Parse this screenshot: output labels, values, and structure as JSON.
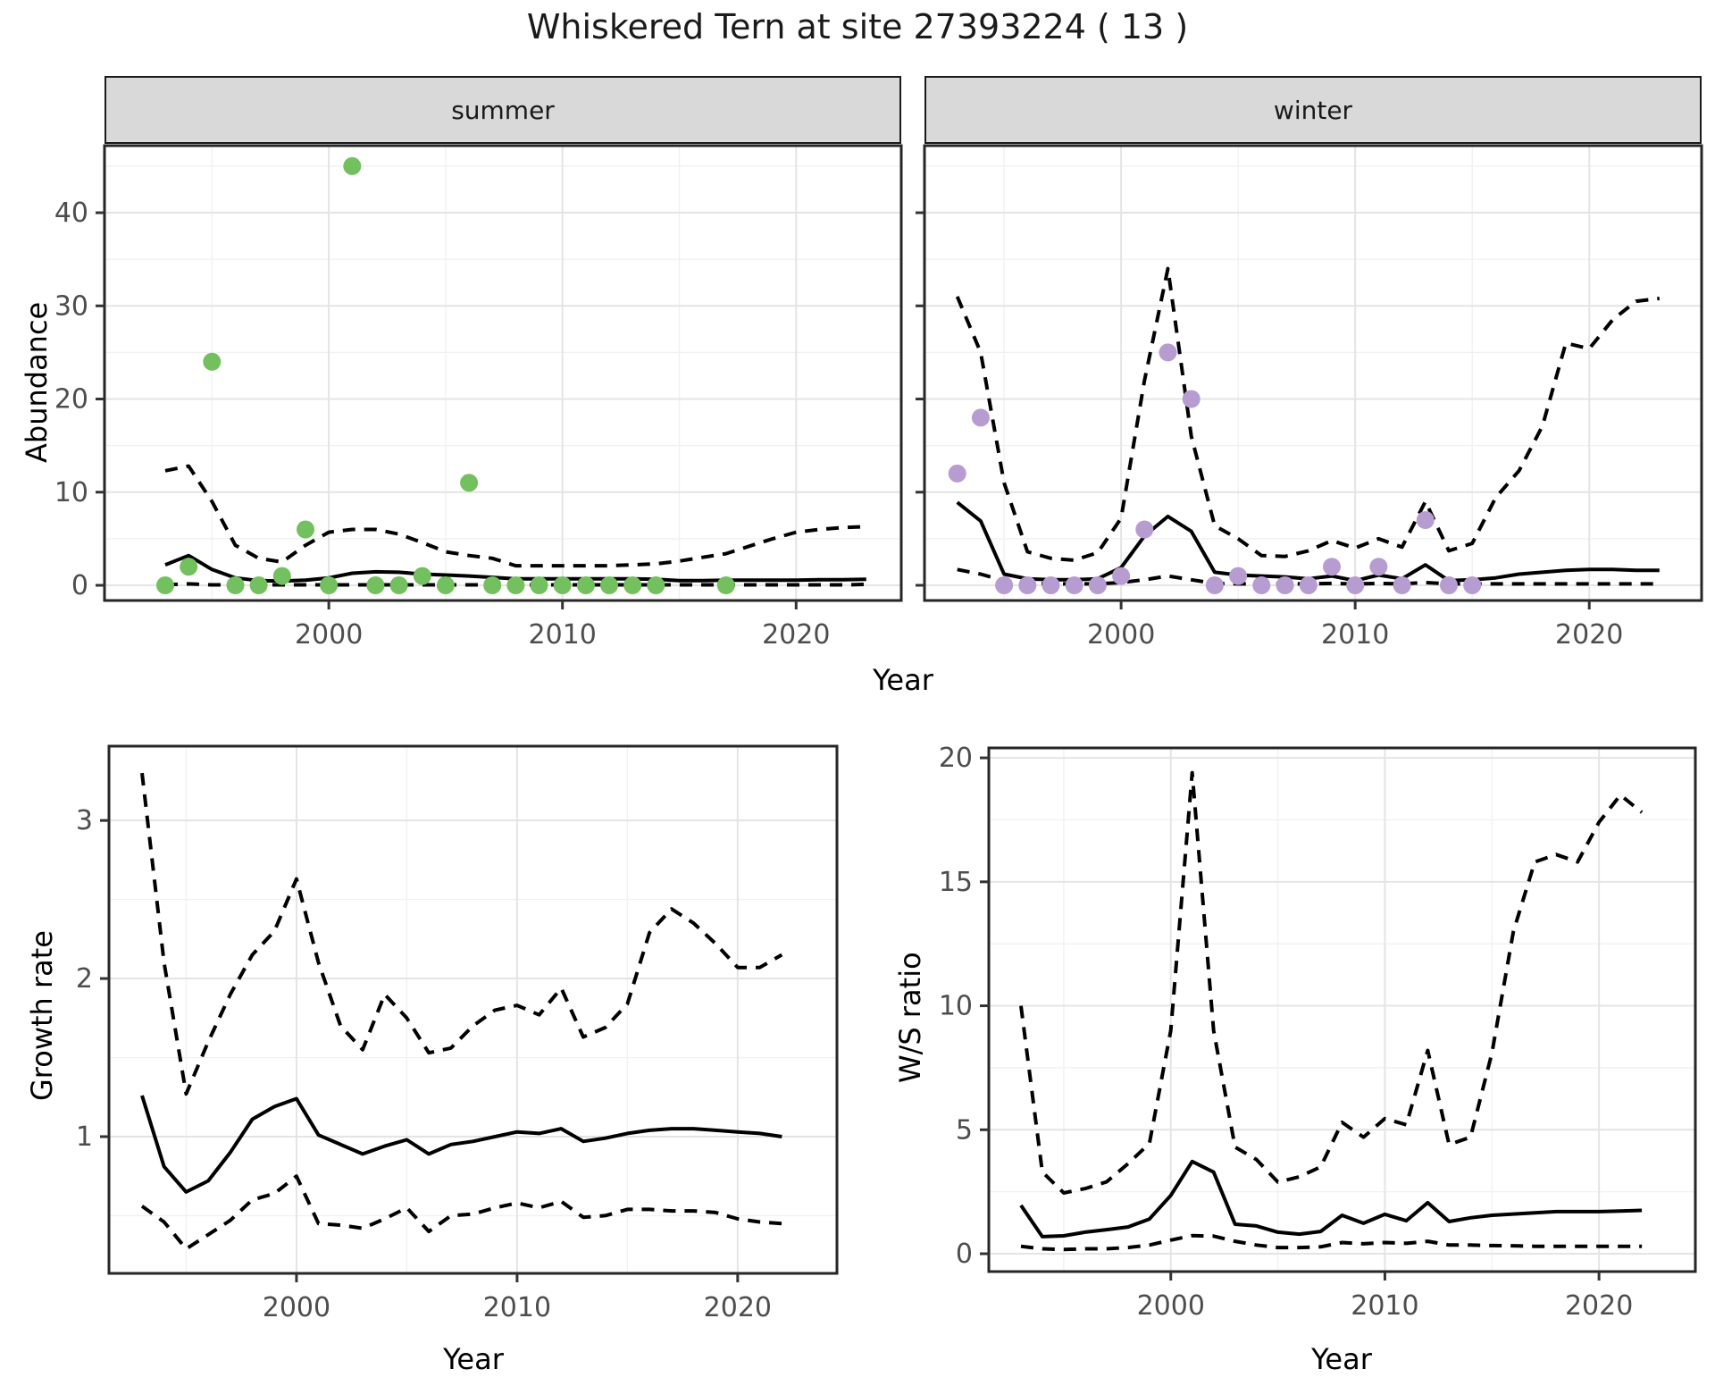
{
  "title": "Whiskered Tern at site 27393224 ( 13 )",
  "xlabel": "Year",
  "colors": {
    "summer_points": "#73c05f",
    "winter_points": "#b69cd1",
    "line": "#000000",
    "strip_bg": "#d9d9d9",
    "panel_border": "#262626",
    "grid_major": "#e4e4e4",
    "grid_minor": "#f1f1f1",
    "tick_label": "#4d4d4d"
  },
  "chart_data": {
    "type": "line",
    "note": "observed abundance dots with modelled median (solid) and 95% CI (dashed)",
    "panels": [
      {
        "id": "abundance-summer",
        "facet": "summer",
        "ylabel": "Abundance",
        "x_ticks": [
          2000,
          2010,
          2020
        ],
        "x_minor": [
          1995,
          2005,
          2015
        ],
        "y_ticks": [
          0,
          10,
          20,
          30,
          40
        ],
        "y_minor": [
          5,
          15,
          25,
          35,
          45
        ],
        "show_y_labels": true,
        "points": {
          "years": [
            1993,
            1994,
            1995,
            1996,
            1997,
            1998,
            1999,
            2000,
            2001,
            2002,
            2003,
            2004,
            2005,
            2006,
            2007,
            2008,
            2009,
            2010,
            2011,
            2012,
            2013,
            2014,
            2017
          ],
          "values": [
            0,
            2,
            24,
            0,
            0,
            1,
            6,
            0,
            45,
            0,
            0,
            1,
            0,
            11,
            0,
            0,
            0,
            0,
            0,
            0,
            0,
            0,
            0
          ],
          "color_key": "summer_points"
        },
        "median": {
          "years_start": 1993,
          "values": [
            2.2,
            3.2,
            1.7,
            0.8,
            0.5,
            0.45,
            0.55,
            0.8,
            1.3,
            1.45,
            1.4,
            1.2,
            1.1,
            1.0,
            0.85,
            0.7,
            0.7,
            0.7,
            0.7,
            0.7,
            0.7,
            0.65,
            0.5,
            0.5,
            0.55,
            0.55,
            0.55,
            0.55,
            0.6,
            0.6,
            0.65
          ]
        },
        "ci_upper": {
          "years_start": 1993,
          "values": [
            12.3,
            12.8,
            9.0,
            4.3,
            2.9,
            2.5,
            4.3,
            5.7,
            6.0,
            6.0,
            5.5,
            4.6,
            3.6,
            3.2,
            2.9,
            2.1,
            2.1,
            2.1,
            2.1,
            2.1,
            2.2,
            2.3,
            2.6,
            3.0,
            3.4,
            4.2,
            5.0,
            5.7,
            6.0,
            6.2,
            6.3
          ]
        },
        "ci_lower": {
          "years_start": 1993,
          "values": [
            0.05,
            0.15,
            0.05,
            0.05,
            0.05,
            0.05,
            0.05,
            0.05,
            0.05,
            0.05,
            0.05,
            0.05,
            0.05,
            0.05,
            0.05,
            0.05,
            0.05,
            0.05,
            0.05,
            0.05,
            0.05,
            0.05,
            0.05,
            0.05,
            0.05,
            0.05,
            0.05,
            0.05,
            0.05,
            0.05,
            0.1
          ]
        }
      },
      {
        "id": "abundance-winter",
        "facet": "winter",
        "ylabel": "Abundance",
        "x_ticks": [
          2000,
          2010,
          2020
        ],
        "x_minor": [
          1995,
          2005,
          2015
        ],
        "y_ticks": [
          0,
          10,
          20,
          30,
          40
        ],
        "y_minor": [
          5,
          15,
          25,
          35,
          45
        ],
        "show_y_labels": false,
        "points": {
          "years": [
            1993,
            1994,
            1995,
            1996,
            1997,
            1998,
            1999,
            2000,
            2001,
            2002,
            2003,
            2004,
            2005,
            2006,
            2007,
            2008,
            2009,
            2010,
            2011,
            2012,
            2013,
            2014,
            2015
          ],
          "values": [
            12,
            18,
            0,
            0,
            0,
            0,
            0,
            1,
            6,
            25,
            20,
            0,
            1,
            0,
            0,
            0,
            2,
            0,
            2,
            0,
            7,
            0,
            0
          ],
          "color_key": "winter_points"
        },
        "median": {
          "years_start": 1993,
          "values": [
            8.9,
            6.9,
            1.2,
            0.7,
            0.6,
            0.6,
            0.7,
            1.9,
            5.3,
            7.4,
            5.8,
            1.4,
            1.1,
            1.0,
            0.9,
            0.7,
            1.0,
            0.5,
            1.1,
            0.7,
            2.2,
            0.5,
            0.6,
            0.8,
            1.2,
            1.4,
            1.6,
            1.7,
            1.7,
            1.6,
            1.6
          ]
        },
        "ci_upper": {
          "years_start": 1993,
          "values": [
            31,
            25,
            11,
            3.6,
            2.9,
            2.7,
            3.5,
            7.2,
            22,
            34,
            16,
            6.4,
            5.0,
            3.2,
            3.1,
            3.7,
            4.8,
            4.0,
            5.0,
            4.1,
            9.0,
            3.7,
            4.5,
            9.4,
            12.3,
            17.1,
            26,
            25.4,
            28.5,
            30.5,
            30.8
          ]
        },
        "ci_lower": {
          "years_start": 1993,
          "values": [
            1.7,
            1.2,
            0.5,
            0.2,
            0.15,
            0.15,
            0.15,
            0.3,
            0.6,
            1.0,
            0.6,
            0.2,
            0.15,
            0.15,
            0.15,
            0.15,
            0.2,
            0.15,
            0.2,
            0.15,
            0.3,
            0.15,
            0.15,
            0.15,
            0.15,
            0.15,
            0.15,
            0.15,
            0.15,
            0.15,
            0.15
          ]
        }
      },
      {
        "id": "growth-rate",
        "facet": "",
        "ylabel": "Growth rate",
        "x_ticks": [
          2000,
          2010,
          2020
        ],
        "x_minor": [
          1995,
          2005,
          2015
        ],
        "y_ticks": [
          1,
          2,
          3
        ],
        "y_minor": [
          0.5,
          1.5,
          2.5
        ],
        "show_y_labels": true,
        "median": {
          "years_start": 1993,
          "values": [
            1.26,
            0.81,
            0.65,
            0.72,
            0.9,
            1.11,
            1.19,
            1.24,
            1.01,
            0.95,
            0.89,
            0.94,
            0.98,
            0.89,
            0.95,
            0.97,
            1.0,
            1.03,
            1.02,
            1.05,
            0.97,
            0.99,
            1.02,
            1.04,
            1.05,
            1.05,
            1.04,
            1.03,
            1.02,
            1.0
          ]
        },
        "ci_upper": {
          "years_start": 1993,
          "values": [
            3.3,
            2.1,
            1.27,
            1.6,
            1.9,
            2.15,
            2.3,
            2.63,
            2.1,
            1.7,
            1.55,
            1.9,
            1.75,
            1.53,
            1.56,
            1.7,
            1.8,
            1.83,
            1.77,
            1.94,
            1.63,
            1.69,
            1.84,
            2.29,
            2.44,
            2.35,
            2.22,
            2.07,
            2.07,
            2.15
          ]
        },
        "ci_lower": {
          "years_start": 1993,
          "values": [
            0.56,
            0.46,
            0.29,
            0.38,
            0.47,
            0.6,
            0.64,
            0.75,
            0.45,
            0.44,
            0.42,
            0.48,
            0.55,
            0.4,
            0.5,
            0.51,
            0.55,
            0.58,
            0.55,
            0.59,
            0.49,
            0.5,
            0.54,
            0.54,
            0.53,
            0.53,
            0.52,
            0.48,
            0.46,
            0.45
          ]
        }
      },
      {
        "id": "ws-ratio",
        "facet": "",
        "ylabel": "W/S ratio",
        "x_ticks": [
          2000,
          2010,
          2020
        ],
        "x_minor": [
          1995,
          2005,
          2015
        ],
        "y_ticks": [
          0,
          5,
          10,
          15,
          20
        ],
        "y_minor": [
          2.5,
          7.5,
          12.5,
          17.5
        ],
        "show_y_labels": true,
        "median": {
          "years_start": 1993,
          "values": [
            1.95,
            0.69,
            0.72,
            0.87,
            0.97,
            1.08,
            1.4,
            2.35,
            3.72,
            3.29,
            1.19,
            1.12,
            0.87,
            0.79,
            0.9,
            1.55,
            1.23,
            1.59,
            1.33,
            2.06,
            1.3,
            1.45,
            1.55,
            1.6,
            1.65,
            1.7,
            1.7,
            1.7,
            1.72,
            1.75
          ]
        },
        "ci_upper": {
          "years_start": 1993,
          "values": [
            10.0,
            3.3,
            2.45,
            2.63,
            2.9,
            3.63,
            4.45,
            9.0,
            19.4,
            9.0,
            4.3,
            3.8,
            2.89,
            3.1,
            3.5,
            5.3,
            4.7,
            5.45,
            5.2,
            8.2,
            4.4,
            4.7,
            8.1,
            13.0,
            15.8,
            16.1,
            15.8,
            17.4,
            18.5,
            17.8
          ]
        },
        "ci_lower": {
          "years_start": 1993,
          "values": [
            0.3,
            0.2,
            0.17,
            0.2,
            0.2,
            0.25,
            0.35,
            0.55,
            0.73,
            0.71,
            0.5,
            0.35,
            0.25,
            0.25,
            0.28,
            0.45,
            0.4,
            0.45,
            0.42,
            0.5,
            0.35,
            0.35,
            0.33,
            0.32,
            0.3,
            0.3,
            0.3,
            0.3,
            0.3,
            0.3
          ]
        }
      }
    ]
  }
}
